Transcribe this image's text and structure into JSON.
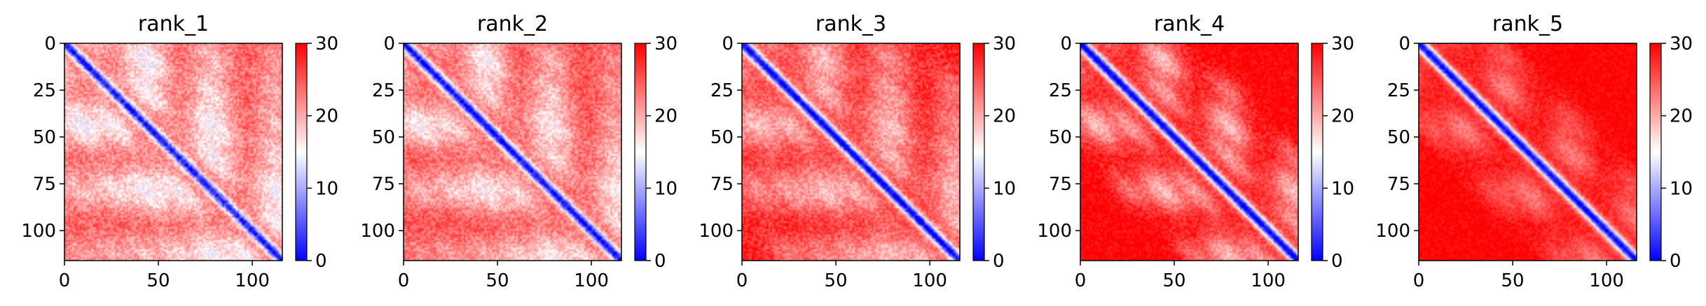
{
  "chart_data": [
    {
      "type": "heatmap",
      "title": "rank_1",
      "n": 116,
      "xlim": [
        0,
        116
      ],
      "ylim": [
        116,
        0
      ],
      "xticks": [
        0,
        50,
        100
      ],
      "yticks": [
        0,
        25,
        50,
        75,
        100
      ],
      "colorbar": {
        "min": 0,
        "max": 30,
        "ticks": [
          0,
          10,
          20,
          30
        ],
        "colormap": "bwr"
      },
      "pattern": {
        "diag_width": 2.6,
        "diag_value": 4,
        "period": 35,
        "band_dist": [
          18,
          35,
          53,
          70,
          88,
          105
        ],
        "band_depth": [
          7,
          9,
          7,
          6,
          5,
          4
        ],
        "band_width": [
          6,
          8,
          7,
          7,
          7,
          7
        ],
        "base": 22,
        "ramp": 3,
        "noise": 3.2
      }
    },
    {
      "type": "heatmap",
      "title": "rank_2",
      "n": 116,
      "xlim": [
        0,
        116
      ],
      "ylim": [
        116,
        0
      ],
      "xticks": [
        0,
        50,
        100
      ],
      "yticks": [
        0,
        25,
        50,
        75,
        100
      ],
      "colorbar": {
        "min": 0,
        "max": 30,
        "ticks": [
          0,
          10,
          20,
          30
        ],
        "colormap": "bwr"
      },
      "pattern": {
        "diag_width": 2.7,
        "diag_value": 3,
        "period": 35,
        "band_dist": [
          18,
          35,
          53,
          70,
          88,
          105
        ],
        "band_depth": [
          6,
          9,
          7,
          6,
          5,
          4
        ],
        "band_width": [
          6,
          8,
          7,
          7,
          7,
          7
        ],
        "base": 23,
        "ramp": 3,
        "noise": 3.0
      }
    },
    {
      "type": "heatmap",
      "title": "rank_3",
      "n": 116,
      "xlim": [
        0,
        116
      ],
      "ylim": [
        116,
        0
      ],
      "xticks": [
        0,
        50,
        100
      ],
      "yticks": [
        0,
        25,
        50,
        75,
        100
      ],
      "colorbar": {
        "min": 0,
        "max": 30,
        "ticks": [
          0,
          10,
          20,
          30
        ],
        "colormap": "bwr"
      },
      "pattern": {
        "diag_width": 2.8,
        "diag_value": 2,
        "period": 35,
        "band_dist": [
          18,
          35,
          53,
          70,
          88
        ],
        "band_depth": [
          6,
          8,
          7,
          6,
          5
        ],
        "band_width": [
          6,
          8,
          7,
          7,
          7
        ],
        "base": 25,
        "ramp": 3,
        "noise": 2.8
      }
    },
    {
      "type": "heatmap",
      "title": "rank_4",
      "n": 116,
      "xlim": [
        0,
        116
      ],
      "ylim": [
        116,
        0
      ],
      "xticks": [
        0,
        50,
        100
      ],
      "yticks": [
        0,
        25,
        50,
        75,
        100
      ],
      "colorbar": {
        "min": 0,
        "max": 30,
        "ticks": [
          0,
          10,
          20,
          30
        ],
        "colormap": "bwr"
      },
      "pattern": {
        "diag_width": 3.0,
        "diag_value": 2,
        "period": 35,
        "band_dist": [
          18,
          35,
          53
        ],
        "band_depth": [
          7,
          10,
          6
        ],
        "band_width": [
          5,
          7,
          6
        ],
        "base": 27,
        "ramp": 3,
        "noise": 2.4
      }
    },
    {
      "type": "heatmap",
      "title": "rank_5",
      "n": 116,
      "xlim": [
        0,
        116
      ],
      "ylim": [
        116,
        0
      ],
      "xticks": [
        0,
        50,
        100
      ],
      "yticks": [
        0,
        25,
        50,
        75,
        100
      ],
      "colorbar": {
        "min": 0,
        "max": 30,
        "ticks": [
          0,
          10,
          20,
          30
        ],
        "colormap": "bwr"
      },
      "pattern": {
        "diag_width": 3.0,
        "diag_value": 2,
        "period": 35,
        "band_dist": [
          22,
          40
        ],
        "band_depth": [
          6,
          4
        ],
        "band_width": [
          7,
          7
        ],
        "base": 28,
        "ramp": 2,
        "noise": 1.8
      }
    }
  ]
}
